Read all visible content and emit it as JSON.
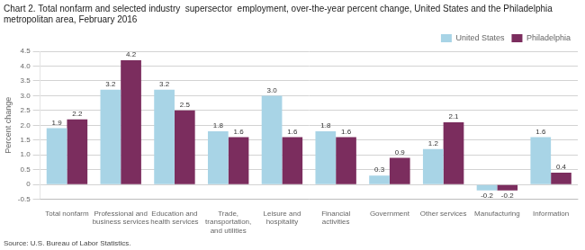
{
  "chart_data": {
    "type": "bar",
    "title": [
      "Chart 2. Total nonfarm and selected industry  supersector  employment, over-the-year percent change, United States and the Philadelphia",
      "metropolitan area, February 2016"
    ],
    "ylabel": "Percent change",
    "annotations": [
      "Source: U.S. Bureau of Labor Statistics."
    ],
    "categories": [
      "Total nonfarm",
      "Professional and\nbusiness services",
      "Education and\nhealth services",
      "Trade,\ntransportation,\nand utilities",
      "Leisure and\nhospitality",
      "Financial\nactivities",
      "Government",
      "Other services",
      "Manufacturing",
      "Information"
    ],
    "series": [
      {
        "name": "United States",
        "color": "#a8d4e6",
        "values": [
          1.9,
          3.2,
          3.2,
          1.8,
          3.0,
          1.8,
          0.3,
          1.2,
          -0.2,
          1.6
        ],
        "value_labels": [
          "1.9",
          "3.2",
          "3.2",
          "1.8",
          "3.0",
          "1.8",
          "0.3",
          "1.2",
          "-0.2",
          "1.6"
        ]
      },
      {
        "name": "Philadelphia",
        "color": "#7b2d5e",
        "values": [
          2.2,
          4.2,
          2.5,
          1.6,
          1.6,
          1.6,
          0.9,
          2.1,
          -0.2,
          0.4
        ],
        "value_labels": [
          "2.2",
          "4.2",
          "2.5",
          "1.6",
          "1.6",
          "1.6",
          "0.9",
          "2.1",
          "-0.2",
          "0.4"
        ]
      }
    ],
    "ylim": [
      -0.5,
      4.5
    ],
    "yticks": [
      -0.5,
      0,
      0.5,
      {
        "value": 1.0,
        "label": "1.0"
      },
      1.5,
      {
        "value": 2.0,
        "label": "2.0"
      },
      2.5,
      {
        "value": 3.0,
        "label": "3.0"
      },
      3.5,
      {
        "value": 4.0,
        "label": "4.0"
      },
      4.5
    ],
    "grid": true,
    "legend": "upper right",
    "data_labels": true
  }
}
